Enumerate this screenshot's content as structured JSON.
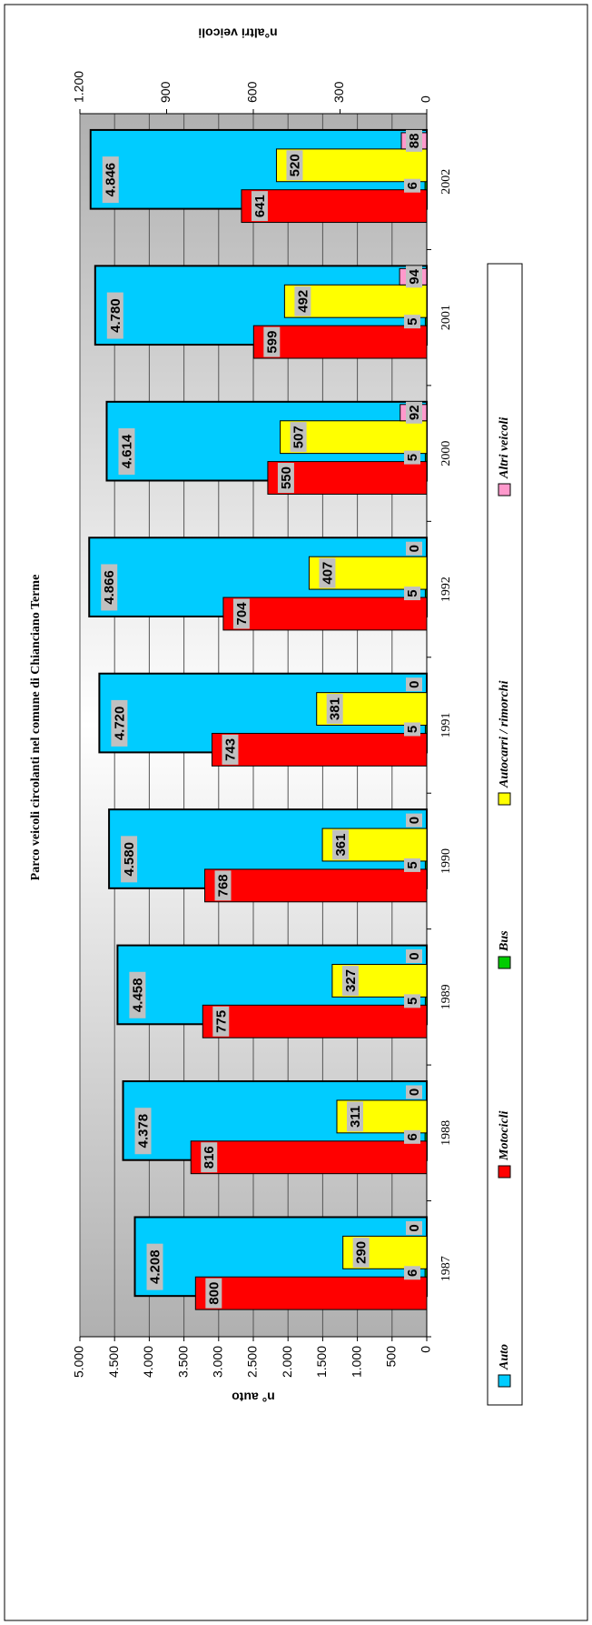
{
  "chart_data": {
    "type": "bar",
    "title": "Parco veicoli circolanti nel comune di Chianciano Terme",
    "y_label": "n° auto",
    "y2_label": "n°altri veicoli",
    "categories": [
      "1987",
      "1988",
      "1989",
      "1990",
      "1991",
      "1992",
      "2000",
      "2001",
      "2002"
    ],
    "series": [
      {
        "name": "Auto",
        "color": "#00ccff",
        "axis": "y",
        "values": [
          4208,
          4378,
          4458,
          4580,
          4720,
          4866,
          4614,
          4780,
          4846
        ],
        "value_labels": [
          "4.208",
          "4.378",
          "4.458",
          "4.580",
          "4.720",
          "4.866",
          "4.614",
          "4.780",
          "4.846"
        ]
      },
      {
        "name": "Motocicli",
        "color": "#ff0000",
        "axis": "y2",
        "values": [
          800,
          816,
          775,
          768,
          743,
          704,
          550,
          599,
          641
        ]
      },
      {
        "name": "Bus",
        "color": "#00cc00",
        "axis": "y2",
        "values": [
          6,
          6,
          5,
          5,
          5,
          5,
          5,
          5,
          6
        ]
      },
      {
        "name": "Autocarri / rimorchi",
        "color": "#ffff00",
        "axis": "y2",
        "values": [
          290,
          311,
          327,
          361,
          381,
          407,
          507,
          492,
          520
        ]
      },
      {
        "name": "Altri veicoli",
        "color": "#ff99cc",
        "axis": "y2",
        "values": [
          0,
          0,
          0,
          0,
          0,
          0,
          92,
          94,
          88
        ]
      }
    ],
    "ylim": [
      0,
      5000
    ],
    "yticks": [
      0,
      500,
      {
        "value": 1000,
        "label": "1.000"
      },
      {
        "value": 1500,
        "label": "1.500"
      },
      {
        "value": 2000,
        "label": "2.000"
      },
      {
        "value": 2500,
        "label": "2.500"
      },
      {
        "value": 3000,
        "label": "3.000"
      },
      {
        "value": 3500,
        "label": "3.500"
      },
      {
        "value": 4000,
        "label": "4.000"
      },
      {
        "value": 4500,
        "label": "4.500"
      },
      {
        "value": 5000,
        "label": "5.000"
      }
    ],
    "y2lim": [
      0,
      1200
    ],
    "y2ticks": [
      0,
      300,
      600,
      900,
      {
        "value": 1200,
        "label": "1.200"
      }
    ],
    "grid": true,
    "legend": "bottom"
  }
}
